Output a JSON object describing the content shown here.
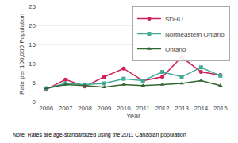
{
  "chart_data": {
    "type": "line",
    "x": [
      2006,
      2007,
      2008,
      2009,
      2010,
      2011,
      2012,
      2013,
      2014,
      2015
    ],
    "series": [
      {
        "name": "SDHU",
        "color": "#cc2255",
        "marker": "circle",
        "values": [
          3.2,
          5.8,
          4.0,
          6.5,
          8.7,
          5.5,
          6.5,
          11.7,
          7.8,
          7.0
        ]
      },
      {
        "name": "Northeastern Ontario",
        "color": "#44aa99",
        "marker": "square",
        "values": [
          3.5,
          4.8,
          4.5,
          4.8,
          6.0,
          5.5,
          7.8,
          6.5,
          9.0,
          6.8
        ]
      },
      {
        "name": "Ontario",
        "color": "#336633",
        "marker": "triangle-up",
        "values": [
          3.5,
          4.5,
          4.2,
          3.8,
          4.5,
          4.2,
          4.5,
          4.8,
          5.5,
          4.2
        ]
      }
    ],
    "xlabel": "Year",
    "ylabel": "Rate per 100,000 Population",
    "xlim": [
      2005.5,
      2015.5
    ],
    "xticks": [
      2006,
      2007,
      2008,
      2009,
      2010,
      2011,
      2012,
      2013,
      2014,
      2015
    ],
    "ylim": [
      0,
      25
    ],
    "yticks": [
      0,
      5,
      10,
      15,
      20,
      25
    ],
    "grid": "y",
    "legend": "upper right",
    "annotations": [
      "Note: Rates are age-standardized using the 2011 Canadian population"
    ]
  }
}
